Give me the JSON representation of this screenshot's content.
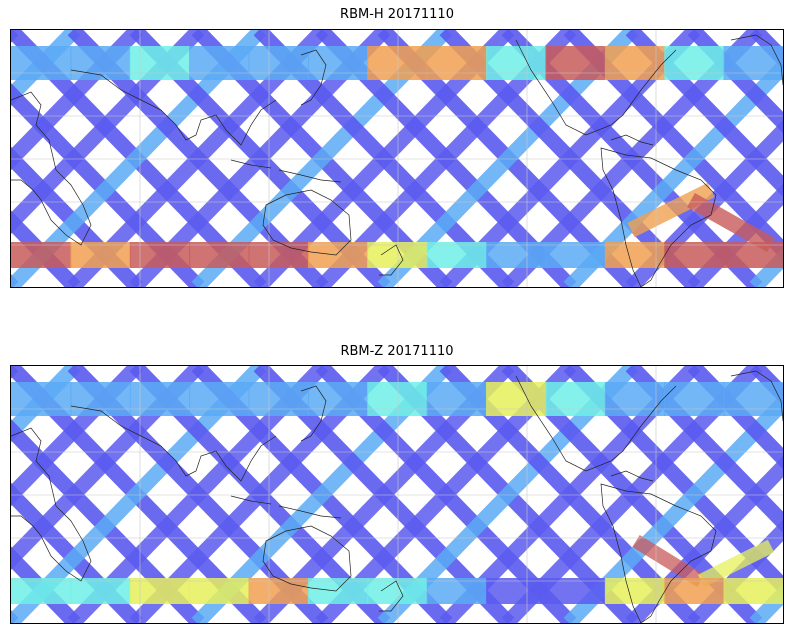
{
  "panels": [
    {
      "title": "RBM-H 20171110",
      "variable": "RBM-H",
      "date": "20171110"
    },
    {
      "title": "RBM-Z 20171110",
      "variable": "RBM-Z",
      "date": "20171110"
    }
  ],
  "colors": {
    "low": "#5a5af0",
    "mid_low": "#5aaaf5",
    "mid": "#6ef0e6",
    "mid_high": "#e6f05a",
    "high": "#f0a050",
    "max": "#c85a5a"
  }
}
